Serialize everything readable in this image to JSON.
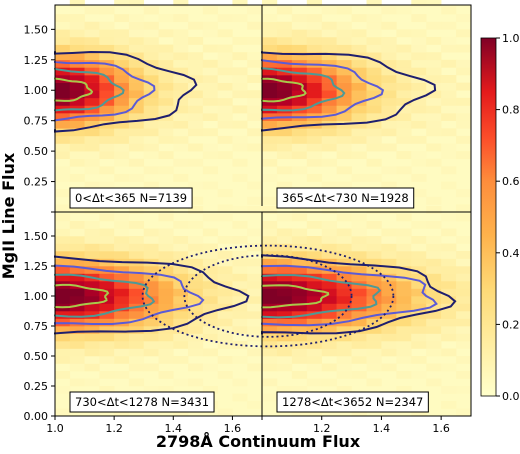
{
  "chart_data": {
    "type": "heatmap",
    "xlabel": "2798Å Continuum Flux",
    "ylabel": "MgII Line Flux",
    "xlim": [
      1.0,
      1.7
    ],
    "ylim": [
      0.0,
      1.7
    ],
    "grid": false,
    "x_ticks": [
      "1.0",
      "1.2",
      "1.4",
      "1.6"
    ],
    "y_ticks": [
      "0.00",
      "0.25",
      "0.50",
      "0.75",
      "1.00",
      "1.25",
      "1.50"
    ],
    "colorbar": {
      "ticks": [
        "0.0",
        "0.2",
        "0.4",
        "0.6",
        "0.8",
        "1.0"
      ],
      "range": [
        0.0,
        1.0
      ],
      "colormap": "YlOrRd"
    },
    "panels": [
      {
        "label": "0<Δt<365 N=7139",
        "peak": [
          1.0,
          1.0
        ],
        "tail": 0.2,
        "extra_contours": false
      },
      {
        "label": "365<Δt<730 N=1928",
        "peak": [
          1.0,
          1.0
        ],
        "tail": 0.24,
        "extra_contours": false
      },
      {
        "label": "730<Δt<1278 N=3431",
        "peak": [
          1.0,
          1.0
        ],
        "tail": 0.3,
        "extra_contours": false
      },
      {
        "label": "1278<Δt<3652 N=2347",
        "peak": [
          1.0,
          1.0
        ],
        "tail": 0.36,
        "extra_contours": true
      }
    ],
    "contour_colors": [
      "#1f1f6e",
      "#5b5bd6",
      "#4d9a96",
      "#a8c94a"
    ],
    "dotted_contour_color": "#1f1f6e"
  }
}
